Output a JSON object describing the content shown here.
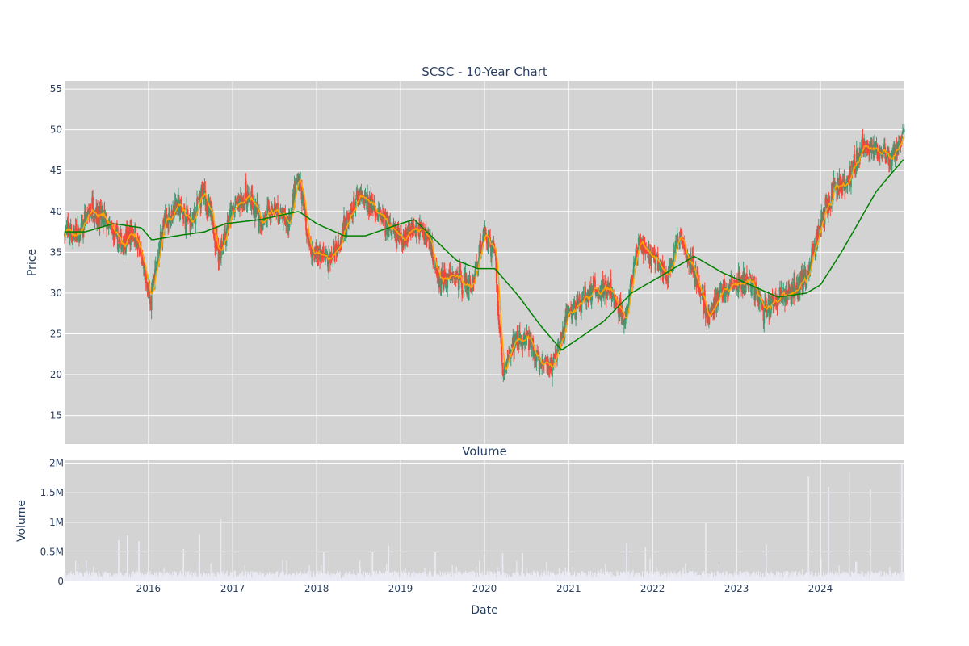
{
  "chart_data": [
    {
      "type": "candlestick",
      "title": "SCSC - 10-Year Chart",
      "ylabel": "Price",
      "ylim": [
        11.5,
        56
      ],
      "yticks": [
        15,
        20,
        25,
        30,
        35,
        40,
        45,
        50,
        55
      ],
      "x_range": [
        "2015-01-01",
        "2024-12-31"
      ],
      "xticks": [
        "2016",
        "2017",
        "2018",
        "2019",
        "2020",
        "2021",
        "2022",
        "2023",
        "2024"
      ],
      "grid": true,
      "colors": {
        "up": "#3d9970",
        "down": "#ff4136",
        "ma_short": "#ffa500",
        "ma_long": "#008000",
        "plot_bg": "#d3d3d3"
      },
      "close_anchors": [
        [
          "2015-01-02",
          37.5
        ],
        [
          "2015-03-01",
          37.0
        ],
        [
          "2015-05-01",
          40.5
        ],
        [
          "2015-07-01",
          38.5
        ],
        [
          "2015-09-01",
          36.0
        ],
        [
          "2015-11-01",
          37.5
        ],
        [
          "2016-01-10",
          29.0
        ],
        [
          "2016-03-01",
          38.0
        ],
        [
          "2016-05-01",
          41.0
        ],
        [
          "2016-07-01",
          38.5
        ],
        [
          "2016-09-01",
          42.5
        ],
        [
          "2016-11-01",
          35.0
        ],
        [
          "2017-01-01",
          40.0
        ],
        [
          "2017-03-01",
          42.0
        ],
        [
          "2017-05-01",
          39.0
        ],
        [
          "2017-07-01",
          40.0
        ],
        [
          "2017-09-01",
          38.5
        ],
        [
          "2017-10-15",
          44.5
        ],
        [
          "2017-12-01",
          35.5
        ],
        [
          "2018-03-01",
          34.0
        ],
        [
          "2018-05-01",
          38.0
        ],
        [
          "2018-07-01",
          41.5
        ],
        [
          "2018-09-01",
          41.0
        ],
        [
          "2018-11-01",
          38.0
        ],
        [
          "2019-01-01",
          36.5
        ],
        [
          "2019-03-01",
          38.5
        ],
        [
          "2019-05-01",
          37.0
        ],
        [
          "2019-06-15",
          31.5
        ],
        [
          "2019-09-01",
          32.0
        ],
        [
          "2019-11-01",
          30.5
        ],
        [
          "2020-01-01",
          37.5
        ],
        [
          "2020-02-15",
          35.0
        ],
        [
          "2020-03-20",
          20.0
        ],
        [
          "2020-05-01",
          24.0
        ],
        [
          "2020-07-01",
          24.5
        ],
        [
          "2020-09-01",
          21.0
        ],
        [
          "2020-11-01",
          21.5
        ],
        [
          "2021-01-01",
          27.5
        ],
        [
          "2021-03-01",
          29.0
        ],
        [
          "2021-05-01",
          30.5
        ],
        [
          "2021-07-01",
          30.0
        ],
        [
          "2021-09-01",
          27.0
        ],
        [
          "2021-11-01",
          36.0
        ],
        [
          "2022-01-01",
          34.5
        ],
        [
          "2022-03-01",
          32.0
        ],
        [
          "2022-05-01",
          37.0
        ],
        [
          "2022-07-01",
          32.5
        ],
        [
          "2022-09-01",
          27.0
        ],
        [
          "2022-11-01",
          30.5
        ],
        [
          "2023-01-01",
          31.0
        ],
        [
          "2023-03-01",
          31.5
        ],
        [
          "2023-05-01",
          28.0
        ],
        [
          "2023-07-01",
          29.5
        ],
        [
          "2023-09-01",
          30.0
        ],
        [
          "2023-11-01",
          32.0
        ],
        [
          "2024-01-01",
          38.5
        ],
        [
          "2024-03-01",
          43.0
        ],
        [
          "2024-05-01",
          44.0
        ],
        [
          "2024-07-01",
          48.0
        ],
        [
          "2024-09-01",
          47.5
        ],
        [
          "2024-11-01",
          46.0
        ],
        [
          "2024-12-31",
          50.0
        ]
      ],
      "ma_long_points": [
        [
          "2015-01-02",
          37.5
        ],
        [
          "2015-04-01",
          37.5
        ],
        [
          "2015-08-01",
          38.5
        ],
        [
          "2015-12-01",
          38.0
        ],
        [
          "2016-01-15",
          36.5
        ],
        [
          "2016-05-01",
          37.0
        ],
        [
          "2016-09-01",
          37.5
        ],
        [
          "2016-12-01",
          38.5
        ],
        [
          "2017-05-01",
          39.0
        ],
        [
          "2017-10-15",
          40.0
        ],
        [
          "2018-01-01",
          38.5
        ],
        [
          "2018-05-01",
          37.0
        ],
        [
          "2018-08-01",
          37.0
        ],
        [
          "2019-01-01",
          38.5
        ],
        [
          "2019-03-01",
          39.0
        ],
        [
          "2019-06-01",
          36.5
        ],
        [
          "2019-09-01",
          34.0
        ],
        [
          "2019-12-01",
          33.0
        ],
        [
          "2020-02-15",
          33.0
        ],
        [
          "2020-06-01",
          29.5
        ],
        [
          "2020-09-01",
          26.0
        ],
        [
          "2020-12-01",
          23.0
        ],
        [
          "2021-06-01",
          26.5
        ],
        [
          "2021-10-01",
          30.0
        ],
        [
          "2022-02-01",
          32.0
        ],
        [
          "2022-07-01",
          34.5
        ],
        [
          "2022-11-01",
          32.5
        ],
        [
          "2023-03-01",
          31.0
        ],
        [
          "2023-07-01",
          29.5
        ],
        [
          "2023-11-01",
          30.0
        ],
        [
          "2024-01-01",
          31.0
        ],
        [
          "2024-04-01",
          35.0
        ],
        [
          "2024-09-01",
          42.5
        ],
        [
          "2024-12-31",
          46.5
        ]
      ]
    },
    {
      "type": "bar",
      "title": "Volume",
      "ylabel": "Volume",
      "xlabel": "Date",
      "ylim": [
        0,
        2050000
      ],
      "yticks": [
        0,
        500000,
        1000000,
        1500000,
        2000000
      ],
      "ytick_labels": [
        "0",
        "0.5M",
        "1M",
        "1.5M",
        "2M"
      ],
      "xticks": [
        "2016",
        "2017",
        "2018",
        "2019",
        "2020",
        "2021",
        "2022",
        "2023",
        "2024"
      ],
      "bar_color": "#ebebf5",
      "base_volume": 150000,
      "volume_spikes": [
        [
          "2015-08-24",
          700000
        ],
        [
          "2015-10-01",
          780000
        ],
        [
          "2015-11-20",
          680000
        ],
        [
          "2016-06-01",
          550000
        ],
        [
          "2016-08-10",
          800000
        ],
        [
          "2016-11-10",
          1050000
        ],
        [
          "2018-02-01",
          500000
        ],
        [
          "2018-09-01",
          500000
        ],
        [
          "2018-11-10",
          600000
        ],
        [
          "2019-06-01",
          500000
        ],
        [
          "2020-03-20",
          480000
        ],
        [
          "2020-06-15",
          480000
        ],
        [
          "2021-09-10",
          650000
        ],
        [
          "2021-12-01",
          580000
        ],
        [
          "2022-08-20",
          1000000
        ],
        [
          "2023-05-10",
          620000
        ],
        [
          "2023-11-10",
          1780000
        ],
        [
          "2024-02-05",
          1600000
        ],
        [
          "2024-05-05",
          1860000
        ],
        [
          "2024-08-05",
          1560000
        ],
        [
          "2024-12-20",
          2000000
        ]
      ]
    }
  ]
}
